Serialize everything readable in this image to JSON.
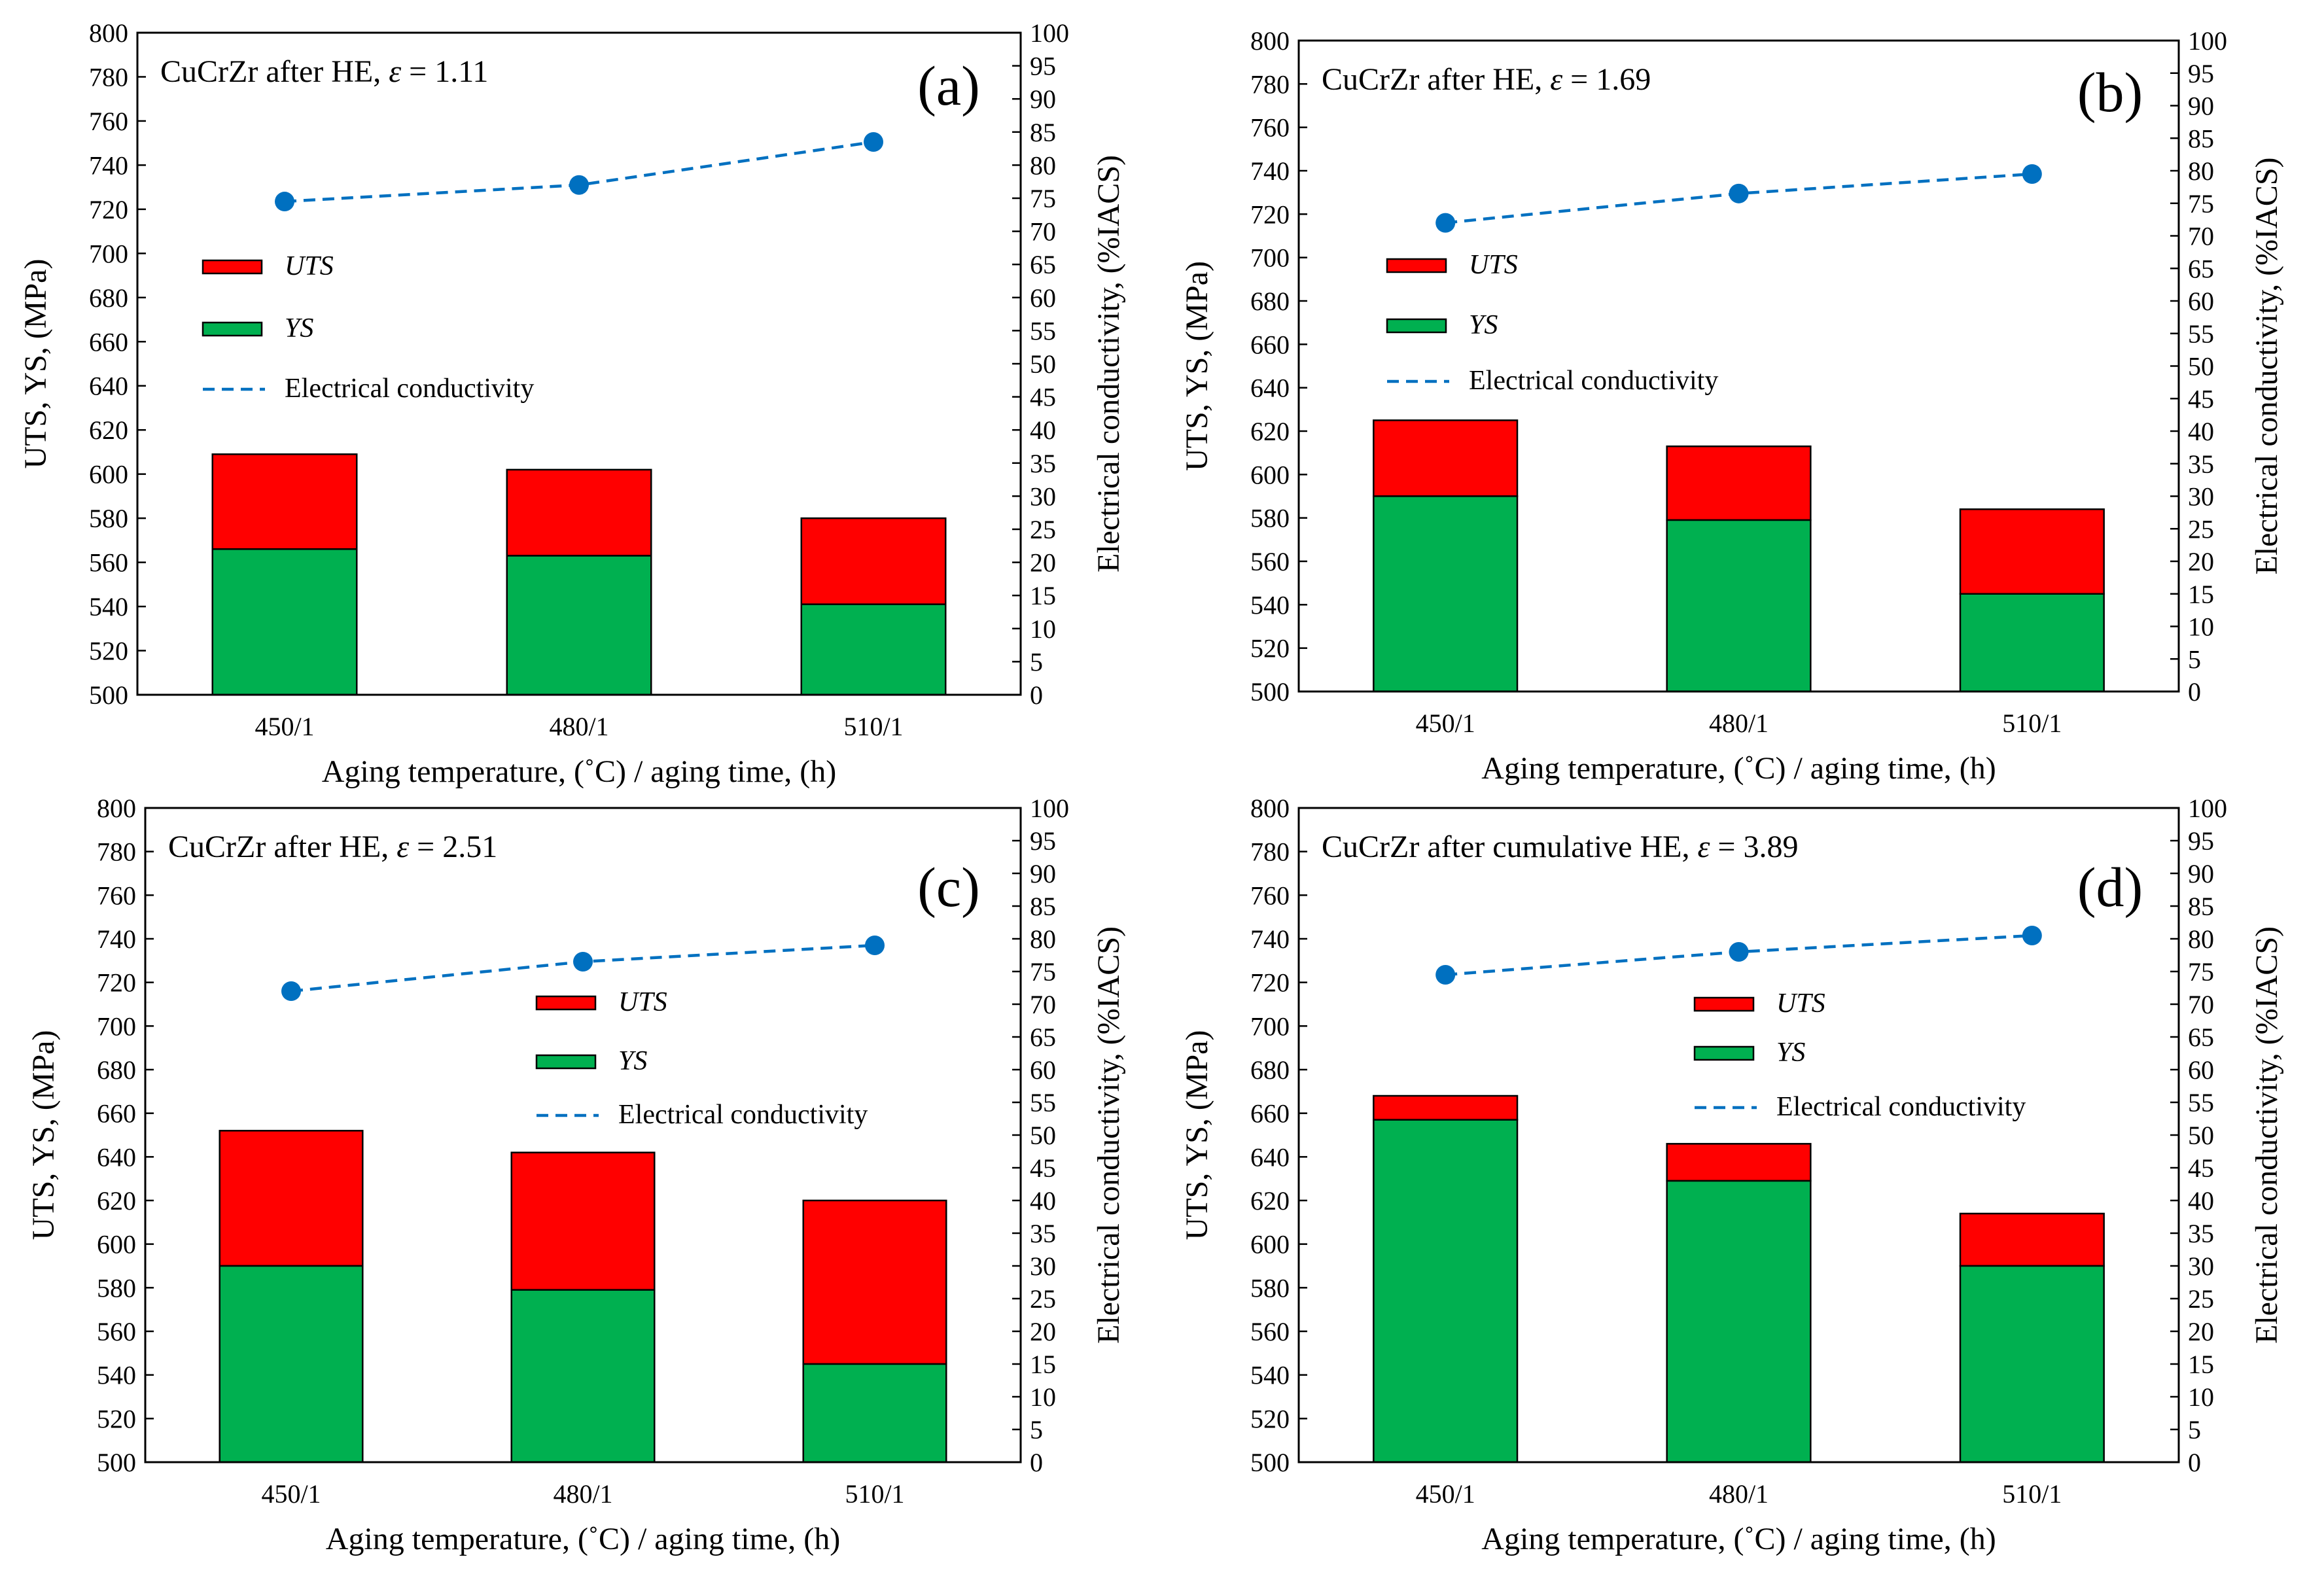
{
  "figure": {
    "description_label": "CuCrZr strength and conductivity after aging"
  },
  "colors": {
    "uts": "#ff0000",
    "ys": "#00b050",
    "conductivity": "#0070c0",
    "axis": "#000000"
  },
  "chart_data": [
    {
      "type": "bar",
      "panel_label": "(a)",
      "title_prefix": "CuCrZr after HE, ",
      "title_symbol": "ε",
      "title_suffix": " = 1.11",
      "categories": [
        "450/1",
        "480/1",
        "510/1"
      ],
      "series": [
        {
          "name": "YS",
          "values": [
            566,
            563,
            541
          ]
        },
        {
          "name": "UTS",
          "values": [
            609,
            602,
            580
          ]
        },
        {
          "name": "Electrical conductivity",
          "axis": "right",
          "values": [
            74.5,
            77.0,
            83.5
          ]
        }
      ],
      "legend": {
        "uts": "UTS",
        "ys": "YS",
        "ec": "Electrical conductivity"
      },
      "xlabel": "Aging temperature, (˚C) / aging time, (h)",
      "ylabel": "UTS, YS, (MPa)",
      "y2label": "Electrical conductivity, (%IACS)",
      "ylim": [
        500,
        800
      ],
      "yticks": [
        500,
        520,
        540,
        560,
        580,
        600,
        620,
        640,
        660,
        680,
        700,
        720,
        740,
        760,
        780,
        800
      ],
      "y2lim": [
        0,
        100
      ],
      "y2ticks": [
        0,
        5,
        10,
        15,
        20,
        25,
        30,
        35,
        40,
        45,
        50,
        55,
        60,
        65,
        70,
        75,
        80,
        85,
        90,
        95,
        100
      ]
    },
    {
      "type": "bar",
      "panel_label": "(b)",
      "title_prefix": "CuCrZr after HE, ",
      "title_symbol": "ε",
      "title_suffix": " = 1.69",
      "categories": [
        "450/1",
        "480/1",
        "510/1"
      ],
      "series": [
        {
          "name": "YS",
          "values": [
            590,
            579,
            545
          ]
        },
        {
          "name": "UTS",
          "values": [
            625,
            613,
            584
          ]
        },
        {
          "name": "Electrical conductivity",
          "axis": "right",
          "values": [
            72.0,
            76.5,
            79.5
          ]
        }
      ],
      "legend": {
        "uts": "UTS",
        "ys": "YS",
        "ec": "Electrical conductivity"
      },
      "xlabel": "Aging temperature, (˚C) / aging time, (h)",
      "ylabel": "UTS, YS, (MPa)",
      "y2label": "Electrical conductivity, (%IACS)",
      "ylim": [
        500,
        800
      ],
      "yticks": [
        500,
        520,
        540,
        560,
        580,
        600,
        620,
        640,
        660,
        680,
        700,
        720,
        740,
        760,
        780,
        800
      ],
      "y2lim": [
        0,
        100
      ],
      "y2ticks": [
        0,
        5,
        10,
        15,
        20,
        25,
        30,
        35,
        40,
        45,
        50,
        55,
        60,
        65,
        70,
        75,
        80,
        85,
        90,
        95,
        100
      ]
    },
    {
      "type": "bar",
      "panel_label": "(c)",
      "title_prefix": "CuCrZr after HE, ",
      "title_symbol": "ε",
      "title_suffix": " = 2.51",
      "categories": [
        "450/1",
        "480/1",
        "510/1"
      ],
      "series": [
        {
          "name": "YS",
          "values": [
            590,
            579,
            545
          ]
        },
        {
          "name": "UTS",
          "values": [
            652,
            642,
            620
          ]
        },
        {
          "name": "Electrical conductivity",
          "axis": "right",
          "values": [
            72.0,
            76.5,
            79.0
          ]
        }
      ],
      "legend": {
        "uts": "UTS",
        "ys": "YS",
        "ec": "Electrical conductivity"
      },
      "xlabel": "Aging temperature, (˚C) / aging time, (h)",
      "ylabel": "UTS, YS, (MPa)",
      "y2label": "Electrical conductivity, (%IACS)",
      "ylim": [
        500,
        800
      ],
      "yticks": [
        500,
        520,
        540,
        560,
        580,
        600,
        620,
        640,
        660,
        680,
        700,
        720,
        740,
        760,
        780,
        800
      ],
      "y2lim": [
        0,
        100
      ],
      "y2ticks": [
        0,
        5,
        10,
        15,
        20,
        25,
        30,
        35,
        40,
        45,
        50,
        55,
        60,
        65,
        70,
        75,
        80,
        85,
        90,
        95,
        100
      ]
    },
    {
      "type": "bar",
      "panel_label": "(d)",
      "title_prefix": "CuCrZr after cumulative HE, ",
      "title_symbol": "ε",
      "title_suffix": " = 3.89",
      "categories": [
        "450/1",
        "480/1",
        "510/1"
      ],
      "series": [
        {
          "name": "YS",
          "values": [
            657,
            629,
            590
          ]
        },
        {
          "name": "UTS",
          "values": [
            668,
            646,
            614
          ]
        },
        {
          "name": "Electrical conductivity",
          "axis": "right",
          "values": [
            74.5,
            78.0,
            80.5
          ]
        }
      ],
      "legend": {
        "uts": "UTS",
        "ys": "YS",
        "ec": "Electrical conductivity"
      },
      "xlabel": "Aging temperature, (˚C) / aging time, (h)",
      "ylabel": "UTS, YS, (MPa)",
      "y2label": "Electrical conductivity, (%IACS)",
      "ylim": [
        500,
        800
      ],
      "yticks": [
        500,
        520,
        540,
        560,
        580,
        600,
        620,
        640,
        660,
        680,
        700,
        720,
        740,
        760,
        780,
        800
      ],
      "y2lim": [
        0,
        100
      ],
      "y2ticks": [
        0,
        5,
        10,
        15,
        20,
        25,
        30,
        35,
        40,
        45,
        50,
        55,
        60,
        65,
        70,
        75,
        80,
        85,
        90,
        95,
        100
      ]
    }
  ]
}
